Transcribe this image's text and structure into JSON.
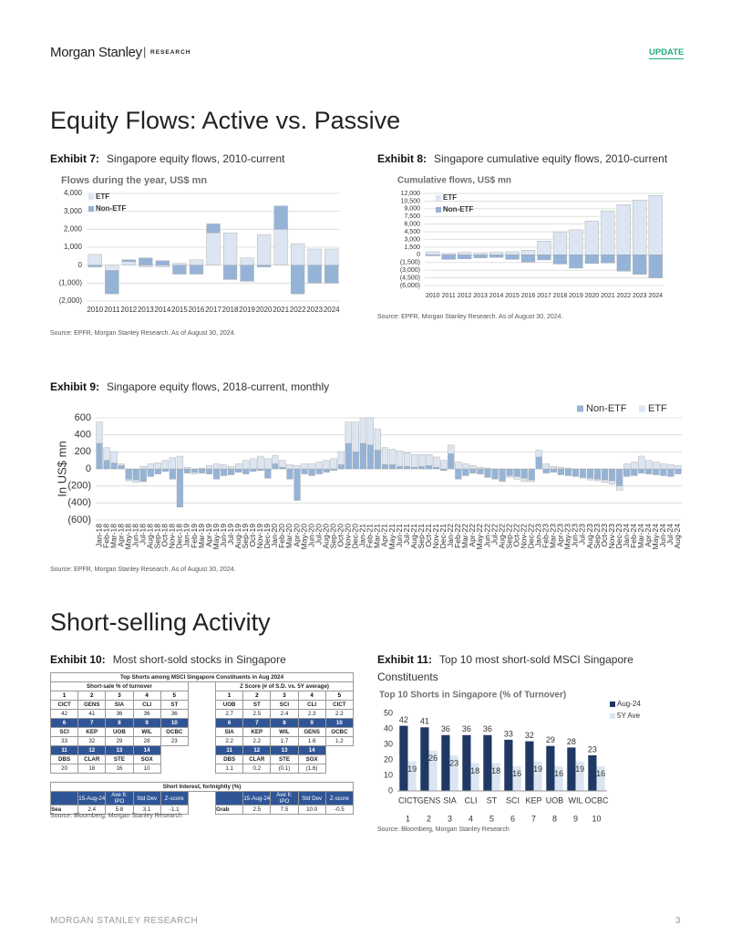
{
  "header": {
    "brand": "Morgan Stanley",
    "section": "RESEARCH",
    "tag": "UPDATE"
  },
  "sections": [
    {
      "title": "Equity Flows: Active vs. Passive"
    },
    {
      "title": "Short-selling Activity"
    }
  ],
  "exhibits": [
    {
      "label": "Exhibit 7:",
      "caption": "Singapore equity flows, 2010-current",
      "source": "Source: EPFR, Morgan Stanley Research. As of August 30, 2024."
    },
    {
      "label": "Exhibit 8:",
      "caption": "Singapore cumulative equity flows, 2010-current",
      "source": "Source: EPFR, Morgan Stanley Research. As of August 30, 2024."
    },
    {
      "label": "Exhibit 9:",
      "caption": "Singapore equity flows, 2018-current, monthly",
      "source": "Source: EPFR, Morgan Stanley Research. As of August 30, 2024."
    },
    {
      "label": "Exhibit 10:",
      "caption": "Most short-sold stocks in Singapore",
      "source": "Source: Bloomberg, Morgan Stanley Research"
    },
    {
      "label": "Exhibit 11:",
      "caption": "Top 10 most short-sold MSCI Singapore Constituents",
      "source": "Source: Bloomberg, Morgan Stanley Research"
    }
  ],
  "chart_data": [
    {
      "type": "stacked_bar",
      "title": "Flows during the year, US$ mn",
      "categories": [
        "2010",
        "2011",
        "2012",
        "2013",
        "2014",
        "2015",
        "2016",
        "2017",
        "2018",
        "2019",
        "2020",
        "2021",
        "2022",
        "2023",
        "2024"
      ],
      "series": [
        {
          "name": "ETF",
          "color": "#dce6f2",
          "values": [
            600,
            -300,
            200,
            -100,
            -100,
            100,
            300,
            1800,
            1800,
            400,
            1700,
            2000,
            1200,
            900,
            900
          ]
        },
        {
          "name": "Non-ETF",
          "color": "#95b3d7",
          "values": [
            -100,
            -1300,
            100,
            400,
            250,
            -500,
            -500,
            500,
            -800,
            -900,
            -100,
            1300,
            -1600,
            -1000,
            -1000
          ]
        }
      ],
      "ylim": [
        -2000,
        4000
      ],
      "yticks": [
        {
          "value": 4000,
          "label": "4,000"
        },
        {
          "value": 3000,
          "label": "3,000"
        },
        {
          "value": 2000,
          "label": "2,000"
        },
        {
          "value": 1000,
          "label": "1,000"
        },
        0,
        {
          "value": -1000,
          "label": "(1,000)"
        },
        {
          "value": -2000,
          "label": "(2,000)"
        }
      ],
      "grid": true,
      "legend": "top-left"
    },
    {
      "type": "stacked_bar",
      "title": "Cumulative flows, US$ mn",
      "categories": [
        "2010",
        "2011",
        "2012",
        "2013",
        "2014",
        "2015",
        "2016",
        "2017",
        "2018",
        "2019",
        "2020",
        "2021",
        "2022",
        "2023",
        "2024"
      ],
      "series": [
        {
          "name": "ETF",
          "color": "#dce6f2",
          "values": [
            600,
            300,
            500,
            400,
            500,
            600,
            900,
            2700,
            4500,
            4900,
            6600,
            8600,
            9800,
            10700,
            11600
          ]
        },
        {
          "name": "Non-ETF",
          "color": "#95b3d7",
          "values": [
            -200,
            -900,
            -800,
            -600,
            -500,
            -900,
            -1400,
            -1000,
            -1800,
            -2600,
            -1700,
            -1600,
            -3200,
            -3800,
            -4500
          ]
        }
      ],
      "ylim": [
        -6000,
        12000
      ],
      "yticks": [
        {
          "value": 12000,
          "label": "12,000"
        },
        {
          "value": 10500,
          "label": "10,500"
        },
        {
          "value": 9000,
          "label": "9,000"
        },
        {
          "value": 7500,
          "label": "7,500"
        },
        {
          "value": 6000,
          "label": "6,000"
        },
        {
          "value": 4500,
          "label": "4,500"
        },
        {
          "value": 3000,
          "label": "3,000"
        },
        {
          "value": 1500,
          "label": "1,500"
        },
        0,
        {
          "value": -1500,
          "label": "(1,500)"
        },
        {
          "value": -3000,
          "label": "(3,000)"
        },
        {
          "value": -4500,
          "label": "(4,500)"
        },
        {
          "value": -6000,
          "label": "(6,000)"
        }
      ],
      "grid": true,
      "legend": "top-left"
    },
    {
      "type": "stacked_bar",
      "y_label": "In US$ mn",
      "categories": [
        "Jan-18",
        "Feb-18",
        "Mar-18",
        "Apr-18",
        "May-18",
        "Jun-18",
        "Jul-18",
        "Aug-18",
        "Sep-18",
        "Oct-18",
        "Nov-18",
        "Dec-18",
        "Jan-19",
        "Feb-19",
        "Mar-19",
        "Apr-19",
        "May-19",
        "Jun-19",
        "Jul-19",
        "Aug-19",
        "Sep-19",
        "Oct-19",
        "Nov-19",
        "Dec-19",
        "Jan-20",
        "Feb-20",
        "Mar-20",
        "Apr-20",
        "May-20",
        "Jun-20",
        "Jul-20",
        "Aug-20",
        "Sep-20",
        "Oct-20",
        "Nov-20",
        "Dec-20",
        "Jan-21",
        "Feb-21",
        "Mar-21",
        "Apr-21",
        "May-21",
        "Jun-21",
        "Jul-21",
        "Aug-21",
        "Sep-21",
        "Oct-21",
        "Nov-21",
        "Dec-21",
        "Jan-22",
        "Feb-22",
        "Mar-22",
        "Apr-22",
        "May-22",
        "Jun-22",
        "Jul-22",
        "Aug-22",
        "Sep-22",
        "Oct-22",
        "Nov-22",
        "Dec-22",
        "Jan-23",
        "Feb-23",
        "Mar-23",
        "Apr-23",
        "May-23",
        "Jun-23",
        "Jul-23",
        "Aug-23",
        "Sep-23",
        "Oct-23",
        "Nov-23",
        "Dec-23",
        "Jan-24",
        "Feb-24",
        "Mar-24",
        "Apr-24",
        "May-24",
        "Jun-24",
        "Jul-24",
        "Aug-24"
      ],
      "series": [
        {
          "name": "Non-ETF",
          "color": "#95b3d7",
          "values": [
            300,
            100,
            70,
            40,
            -120,
            -130,
            -150,
            -90,
            -60,
            -30,
            -120,
            -450,
            -50,
            -40,
            -50,
            -60,
            -120,
            -80,
            -70,
            -40,
            -60,
            -30,
            -20,
            -110,
            60,
            20,
            -120,
            -370,
            -60,
            -80,
            -60,
            -40,
            -20,
            50,
            300,
            200,
            300,
            280,
            220,
            50,
            50,
            30,
            30,
            20,
            30,
            40,
            20,
            -20,
            180,
            -120,
            -80,
            -50,
            -60,
            -100,
            -120,
            -140,
            -80,
            -90,
            -110,
            -130,
            140,
            -50,
            -40,
            -70,
            -80,
            -90,
            -100,
            -110,
            -120,
            -130,
            -140,
            -200,
            -90,
            -80,
            -50,
            -60,
            -70,
            -80,
            -90,
            -60
          ]
        },
        {
          "name": "ETF",
          "color": "#dce6f2",
          "values": [
            250,
            150,
            130,
            20,
            -20,
            -30,
            30,
            60,
            70,
            100,
            130,
            150,
            20,
            -20,
            10,
            40,
            60,
            50,
            30,
            60,
            100,
            120,
            150,
            120,
            100,
            80,
            50,
            40,
            60,
            60,
            80,
            100,
            120,
            150,
            250,
            350,
            300,
            320,
            250,
            200,
            180,
            180,
            160,
            150,
            140,
            130,
            120,
            100,
            100,
            80,
            60,
            40,
            20,
            10,
            0,
            -10,
            -20,
            -30,
            -40,
            -20,
            80,
            60,
            30,
            20,
            10,
            0,
            -10,
            -20,
            -20,
            -30,
            -40,
            -50,
            60,
            80,
            150,
            100,
            80,
            60,
            50,
            40
          ]
        }
      ],
      "ylim": [
        -600,
        600
      ],
      "yticks": [
        600,
        400,
        200,
        0,
        {
          "value": -200,
          "label": "(200)"
        },
        {
          "value": -400,
          "label": "(400)"
        },
        {
          "value": -600,
          "label": "(600)"
        }
      ],
      "grid": true,
      "legend": "top-right"
    },
    {
      "type": "bar",
      "title": "Top 10 Shorts in Singapore (% of Turnover)",
      "categories": [
        "CICT",
        "GENS",
        "SIA",
        "CLI",
        "ST",
        "SCI",
        "KEP",
        "UOB",
        "WIL",
        "OCBC"
      ],
      "category_ranks": [
        "1",
        "2",
        "3",
        "4",
        "5",
        "6",
        "7",
        "8",
        "9",
        "10"
      ],
      "series": [
        {
          "name": "Aug-24",
          "color": "#1f3864",
          "values": [
            42,
            41,
            36,
            36,
            36,
            33,
            32,
            29,
            28,
            23
          ]
        },
        {
          "name": "5Y Ave",
          "color": "#dce6f2",
          "values": [
            19,
            26,
            23,
            18,
            18,
            16,
            19,
            16,
            19,
            16
          ]
        }
      ],
      "ylim": [
        0,
        50
      ],
      "yticks": [
        0,
        10,
        20,
        30,
        40,
        50
      ],
      "grid": false,
      "legend": "top-right"
    }
  ],
  "short_table": {
    "title": "Top Shorts among MSCI Singapore Constituents in Aug 2024",
    "left": {
      "heading": "Short-sale % of turnover",
      "rows": [
        [
          "1",
          "2",
          "3",
          "4",
          "5"
        ],
        [
          "CICT",
          "GENS",
          "SIA",
          "CLI",
          "ST"
        ],
        [
          "42",
          "41",
          "36",
          "36",
          "36"
        ],
        [
          "6",
          "7",
          "8",
          "9",
          "10"
        ],
        [
          "SCI",
          "KEP",
          "UOB",
          "WIL",
          "OCBC"
        ],
        [
          "33",
          "32",
          "29",
          "28",
          "23"
        ],
        [
          "11",
          "12",
          "13",
          "14"
        ],
        [
          "DBS",
          "CLAR",
          "STE",
          "SGX"
        ],
        [
          "20",
          "18",
          "16",
          "10"
        ]
      ]
    },
    "right": {
      "heading": "Z Score (# of S.D. vs. 5Y average)",
      "rows": [
        [
          "1",
          "2",
          "3",
          "4",
          "5"
        ],
        [
          "UOB",
          "ST",
          "SCI",
          "CLI",
          "CICT"
        ],
        [
          "2.7",
          "2.5",
          "2.4",
          "2.3",
          "2.2"
        ],
        [
          "6",
          "7",
          "8",
          "9",
          "10"
        ],
        [
          "SIA",
          "KEP",
          "WIL",
          "GENS",
          "OCBC"
        ],
        [
          "2.2",
          "2.2",
          "1.7",
          "1.6",
          "1.2"
        ],
        [
          "11",
          "12",
          "13",
          "14"
        ],
        [
          "DBS",
          "CLAR",
          "STE",
          "SGX"
        ],
        [
          "1.1",
          "0.2",
          "(0.1)",
          "(1.6)"
        ]
      ]
    },
    "interest": {
      "title": "Short Interest, fortnightly (%)",
      "columns": [
        "15-Aug-24",
        "Ave fr. IPO",
        "Std Dev",
        "Z-score"
      ],
      "rows": [
        [
          "Sea",
          "2.4",
          "5.8",
          "3.1",
          "-1.1"
        ],
        [
          "Grab",
          "2.5",
          "7.5",
          "10.0",
          "-0.5"
        ]
      ]
    }
  },
  "footer": {
    "text": "MORGAN STANLEY RESEARCH",
    "page": "3"
  }
}
